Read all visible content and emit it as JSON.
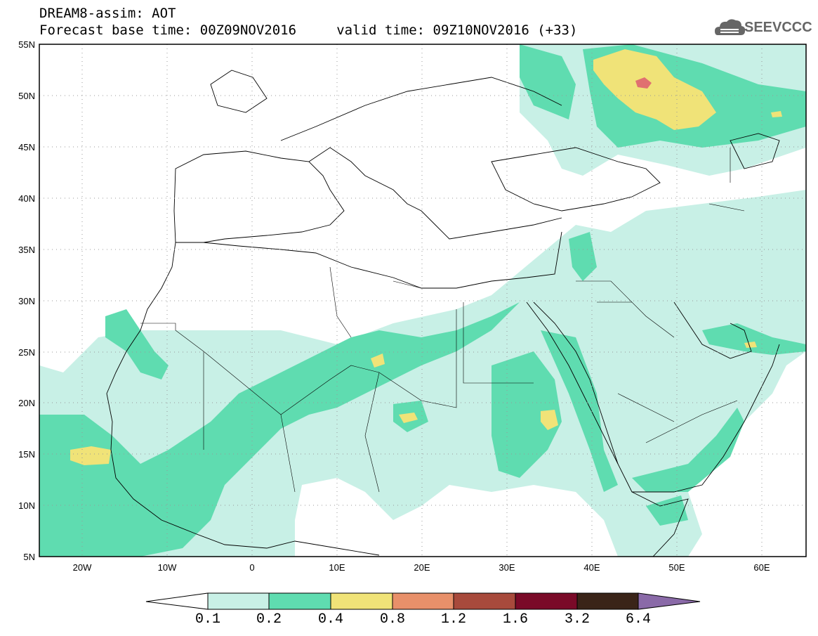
{
  "header": {
    "line1": "DREAM8-assim: AOT",
    "line2": "Forecast base time: 00Z09NOV2016     valid time: 09Z10NOV2016 (+33)"
  },
  "logo": {
    "name": "cloud-logo-icon",
    "text": "SEEVCCC"
  },
  "axes": {
    "y_ticks": [
      "55N",
      "50N",
      "45N",
      "40N",
      "35N",
      "30N",
      "25N",
      "20N",
      "15N",
      "10N",
      "5N"
    ],
    "x_ticks": [
      "20W",
      "10W",
      "0",
      "10E",
      "20E",
      "30E",
      "40E",
      "50E",
      "60E"
    ],
    "lon_range": [
      -25,
      65
    ],
    "lat_range": [
      5,
      55
    ]
  },
  "colorbar": {
    "labels": [
      "0.1",
      "0.2",
      "0.4",
      "0.8",
      "1.2",
      "1.6",
      "3.2",
      "6.4"
    ],
    "colors": [
      "#ffffff",
      "#c8f0e6",
      "#5fdcb0",
      "#f0e378",
      "#e8906a",
      "#a84a3c",
      "#7a0a28",
      "#3a2418",
      "#8a6aa8"
    ]
  },
  "plume_colors": {
    "low": "#c8f0e6",
    "mid": "#5fdcb0",
    "high": "#f0e378",
    "peak": "#e07070"
  }
}
